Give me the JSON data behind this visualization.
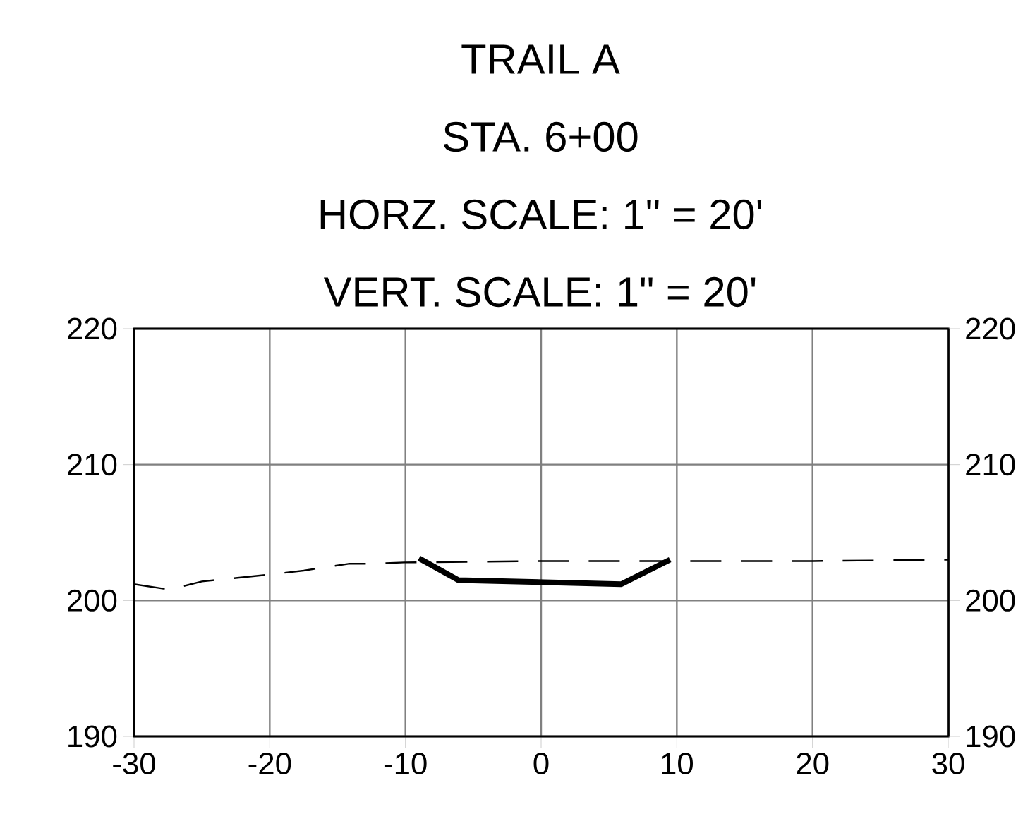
{
  "chart_data": {
    "type": "line",
    "title": "TRAIL A",
    "subtitle": "STA. 6+00",
    "annotations": [
      "HORZ. SCALE: 1\" = 20'",
      "VERT. SCALE: 1\" = 20'"
    ],
    "series": [
      {
        "color": "#000000",
        "line_style": "dashed",
        "x": [
          -30,
          -27.4,
          -25.0,
          -20.1,
          -17.5,
          -14.2,
          -12.6,
          -10.1,
          0,
          10,
          20,
          30
        ],
        "values": [
          201.2,
          200.8,
          201.4,
          201.9,
          202.2,
          202.7,
          202.7,
          202.8,
          202.9,
          202.9,
          202.9,
          203.0
        ]
      },
      {
        "color": "#000000",
        "line_style": "solid",
        "x": [
          -9.0,
          -6.1,
          5.9,
          9.5
        ],
        "values": [
          203.1,
          201.5,
          201.2,
          203.0
        ]
      }
    ],
    "marker": "none",
    "grid": true,
    "xlim": [
      -30,
      30
    ],
    "xticks": [
      -30,
      -20,
      -10,
      0,
      10,
      20,
      30
    ],
    "ylim": [
      190,
      220
    ],
    "yticks": [
      190,
      200,
      210,
      220
    ],
    "y2lim": [
      190,
      220
    ],
    "y2ticks": [
      190,
      200,
      210,
      220
    ]
  }
}
